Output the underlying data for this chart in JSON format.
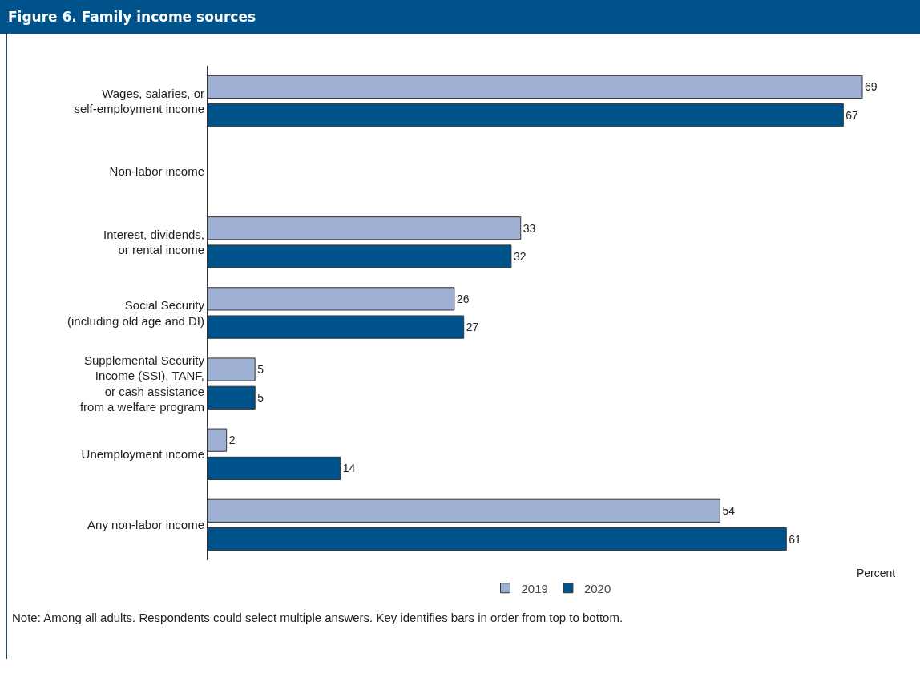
{
  "chart_data": {
    "type": "bar",
    "orientation": "horizontal",
    "title": "Figure 6. Family income sources",
    "xlabel": "Percent",
    "categories": [
      "Wages, salaries, or\nself-employment income",
      "Non-labor income",
      "Interest, dividends,\nor rental income",
      "Social Security\n(including old age and DI)",
      "Supplemental Security\nIncome (SSI), TANF,\nor cash assistance\nfrom a welfare program",
      "Unemployment income",
      "Any non-labor income"
    ],
    "series": [
      {
        "name": "2019",
        "color": "#9eb0d3",
        "values": [
          69,
          null,
          33,
          26,
          5,
          2,
          54
        ]
      },
      {
        "name": "2020",
        "color": "#00538a",
        "values": [
          67,
          null,
          32,
          27,
          5,
          14,
          61
        ]
      }
    ],
    "data_labels": true,
    "legend": "bottom",
    "grid": false,
    "annotations": [
      "Note: Among all adults. Respondents could select multiple answers. Key identifies bars in order from top to bottom."
    ]
  }
}
